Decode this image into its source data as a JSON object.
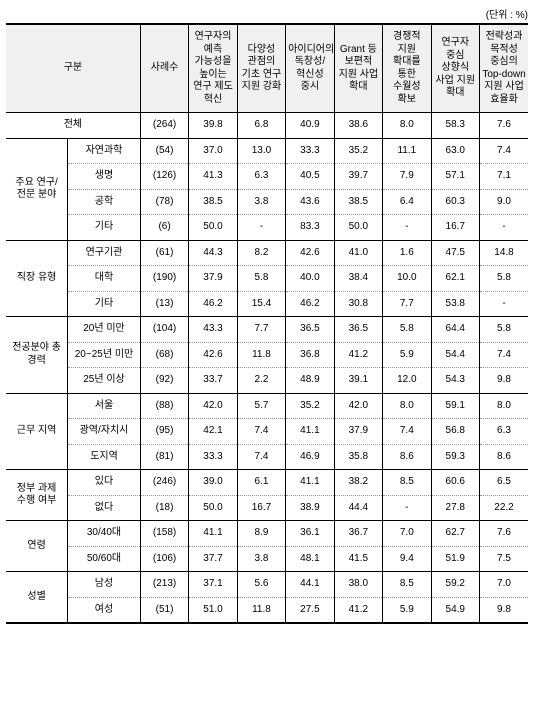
{
  "unit": "(단위 : %)",
  "headers": {
    "c1": "구분",
    "c2": "사례수",
    "c3": "연구자의 예측 가능성을 높이는 연구 제도 혁신",
    "c4": "다양성 관점의 기초 연구 지원 강화",
    "c5": "아이디어의 독창성/혁신성 중시",
    "c6": "Grant 등 보편적 지원 사업 확대",
    "c7": "경쟁적 지원 확대를 통한 수월성 확보",
    "c8": "연구자 중심 상향식 사업 지원 확대",
    "c9": "전략성과 목적성 중심의 Top-down 지원 사업 효율화"
  },
  "sections": [
    {
      "group": "전체",
      "span": 2,
      "rows": [
        {
          "label": null,
          "vals": [
            "(264)",
            "39.8",
            "6.8",
            "40.9",
            "38.6",
            "8.0",
            "58.3",
            "7.6"
          ]
        }
      ]
    },
    {
      "group": "주요 연구/전문 분야",
      "rows": [
        {
          "label": "자연과학",
          "vals": [
            "(54)",
            "37.0",
            "13.0",
            "33.3",
            "35.2",
            "11.1",
            "63.0",
            "7.4"
          ]
        },
        {
          "label": "생명",
          "vals": [
            "(126)",
            "41.3",
            "6.3",
            "40.5",
            "39.7",
            "7.9",
            "57.1",
            "7.1"
          ]
        },
        {
          "label": "공학",
          "vals": [
            "(78)",
            "38.5",
            "3.8",
            "43.6",
            "38.5",
            "6.4",
            "60.3",
            "9.0"
          ]
        },
        {
          "label": "기타",
          "vals": [
            "(6)",
            "50.0",
            "-",
            "83.3",
            "50.0",
            "-",
            "16.7",
            "-"
          ]
        }
      ]
    },
    {
      "group": "직장 유형",
      "rows": [
        {
          "label": "연구기관",
          "vals": [
            "(61)",
            "44.3",
            "8.2",
            "42.6",
            "41.0",
            "1.6",
            "47.5",
            "14.8"
          ]
        },
        {
          "label": "대학",
          "vals": [
            "(190)",
            "37.9",
            "5.8",
            "40.0",
            "38.4",
            "10.0",
            "62.1",
            "5.8"
          ]
        },
        {
          "label": "기타",
          "vals": [
            "(13)",
            "46.2",
            "15.4",
            "46.2",
            "30.8",
            "7.7",
            "53.8",
            "-"
          ]
        }
      ]
    },
    {
      "group": "전공분야 총 경력",
      "rows": [
        {
          "label": "20년 미만",
          "vals": [
            "(104)",
            "43.3",
            "7.7",
            "36.5",
            "36.5",
            "5.8",
            "64.4",
            "5.8"
          ]
        },
        {
          "label": "20~25년 미만",
          "vals": [
            "(68)",
            "42.6",
            "11.8",
            "36.8",
            "41.2",
            "5.9",
            "54.4",
            "7.4"
          ]
        },
        {
          "label": "25년 이상",
          "vals": [
            "(92)",
            "33.7",
            "2.2",
            "48.9",
            "39.1",
            "12.0",
            "54.3",
            "9.8"
          ]
        }
      ]
    },
    {
      "group": "근무 지역",
      "rows": [
        {
          "label": "서울",
          "vals": [
            "(88)",
            "42.0",
            "5.7",
            "35.2",
            "42.0",
            "8.0",
            "59.1",
            "8.0"
          ]
        },
        {
          "label": "광역/자치시",
          "vals": [
            "(95)",
            "42.1",
            "7.4",
            "41.1",
            "37.9",
            "7.4",
            "56.8",
            "6.3"
          ]
        },
        {
          "label": "도지역",
          "vals": [
            "(81)",
            "33.3",
            "7.4",
            "46.9",
            "35.8",
            "8.6",
            "59.3",
            "8.6"
          ]
        }
      ]
    },
    {
      "group": "정부 과제 수행 여부",
      "rows": [
        {
          "label": "있다",
          "vals": [
            "(246)",
            "39.0",
            "6.1",
            "41.1",
            "38.2",
            "8.5",
            "60.6",
            "6.5"
          ]
        },
        {
          "label": "없다",
          "vals": [
            "(18)",
            "50.0",
            "16.7",
            "38.9",
            "44.4",
            "-",
            "27.8",
            "22.2"
          ]
        }
      ]
    },
    {
      "group": "연령",
      "rows": [
        {
          "label": "30/40대",
          "vals": [
            "(158)",
            "41.1",
            "8.9",
            "36.1",
            "36.7",
            "7.0",
            "62.7",
            "7.6"
          ]
        },
        {
          "label": "50/60대",
          "vals": [
            "(106)",
            "37.7",
            "3.8",
            "48.1",
            "41.5",
            "9.4",
            "51.9",
            "7.5"
          ]
        }
      ]
    },
    {
      "group": "성별",
      "rows": [
        {
          "label": "남성",
          "vals": [
            "(213)",
            "37.1",
            "5.6",
            "44.1",
            "38.0",
            "8.5",
            "59.2",
            "7.0"
          ]
        },
        {
          "label": "여성",
          "vals": [
            "(51)",
            "51.0",
            "11.8",
            "27.5",
            "41.2",
            "5.9",
            "54.9",
            "9.8"
          ]
        }
      ]
    }
  ]
}
